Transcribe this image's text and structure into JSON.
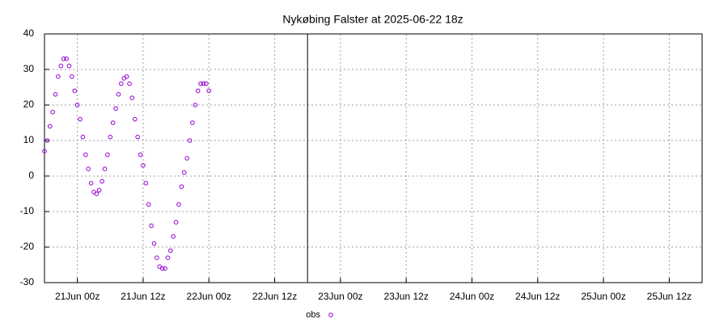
{
  "chart_data": {
    "type": "scatter",
    "title": "Nykøbing Falster at 2025-06-22 18z",
    "x": [
      -6,
      -5.5,
      -5,
      -4.5,
      -4,
      -3.5,
      -3,
      -2.5,
      -2,
      -1.5,
      -1,
      -0.5,
      0,
      0.5,
      1,
      1.5,
      2,
      2.5,
      3,
      3.5,
      4,
      4.5,
      5,
      5.5,
      6,
      6.5,
      7,
      7.5,
      8,
      8.5,
      9,
      9.5,
      10,
      10.5,
      11,
      11.5,
      12,
      12.5,
      13,
      13.5,
      14,
      14.5,
      15,
      15.5,
      16,
      16.5,
      17,
      17.5,
      18,
      18.5,
      19,
      19.5,
      20,
      20.5,
      21,
      21.5,
      22,
      22.5,
      23,
      23.5,
      24
    ],
    "series": [
      {
        "name": "obs",
        "color": "#9400d3",
        "values": [
          7,
          10,
          14,
          18,
          23,
          28,
          31,
          33,
          33,
          31,
          28,
          24,
          20,
          16,
          11,
          6,
          2,
          -2,
          -4.5,
          -5,
          -4,
          -1.5,
          2,
          6,
          11,
          15,
          19,
          23,
          26,
          27.5,
          28,
          26,
          22,
          16,
          11,
          6,
          3,
          -2,
          -8,
          -14,
          -19,
          -23,
          -25.5,
          -26,
          -26,
          -23,
          -21,
          -17,
          -13,
          -8,
          -3,
          1,
          5,
          10,
          15,
          20,
          24,
          26,
          26,
          26,
          24
        ]
      }
    ],
    "xlim": [
      -6,
      114
    ],
    "xticks": [
      {
        "value": 0,
        "label": "21Jun 00z"
      },
      {
        "value": 12,
        "label": "21Jun 12z"
      },
      {
        "value": 24,
        "label": "22Jun 00z"
      },
      {
        "value": 36,
        "label": "22Jun 12z"
      },
      {
        "value": 48,
        "label": "23Jun 00z"
      },
      {
        "value": 60,
        "label": "23Jun 12z"
      },
      {
        "value": 72,
        "label": "24Jun 00z"
      },
      {
        "value": 84,
        "label": "24Jun 12z"
      },
      {
        "value": 96,
        "label": "25Jun 00z"
      },
      {
        "value": 108,
        "label": "25Jun 12z"
      }
    ],
    "ylim": [
      -30,
      40
    ],
    "yticks": [
      -30,
      -20,
      -10,
      0,
      10,
      20,
      30,
      40
    ],
    "vline": 42,
    "grid": true,
    "legend": "bottom"
  }
}
